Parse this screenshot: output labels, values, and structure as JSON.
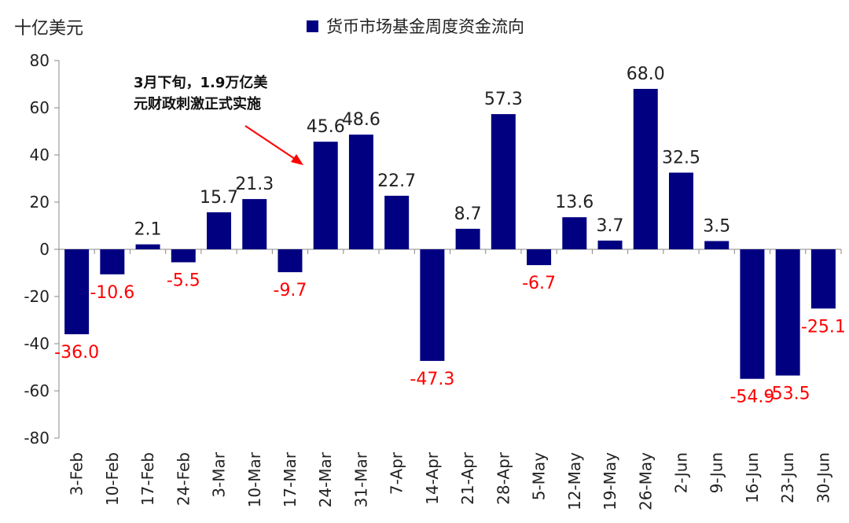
{
  "chart_data": {
    "type": "bar",
    "title": "货币市场基金周度资金流向",
    "ylabel": "十亿美元",
    "xlabel": "",
    "ylim": [
      -80,
      80
    ],
    "yticks": [
      80,
      60,
      40,
      20,
      0,
      -20,
      -40,
      -60,
      -80
    ],
    "grid": false,
    "legend": "top-center",
    "categories": [
      "3-Feb",
      "10-Feb",
      "17-Feb",
      "24-Feb",
      "3-Mar",
      "10-Mar",
      "17-Mar",
      "24-Mar",
      "31-Mar",
      "7-Apr",
      "14-Apr",
      "21-Apr",
      "28-Apr",
      "5-May",
      "12-May",
      "19-May",
      "26-May",
      "2-Jun",
      "9-Jun",
      "16-Jun",
      "23-Jun",
      "30-Jun"
    ],
    "series": [
      {
        "name": "货币市场基金周度资金流向",
        "values": [
          -36.0,
          -10.6,
          2.1,
          -5.5,
          15.7,
          21.3,
          -9.7,
          45.6,
          48.6,
          22.7,
          -47.3,
          8.7,
          57.3,
          -6.7,
          13.6,
          3.7,
          68.0,
          32.5,
          3.5,
          -54.9,
          -53.5,
          -25.1
        ],
        "labels": [
          "-36.0",
          "-10.6",
          "2.1",
          "-5.5",
          "15.7",
          "21.3",
          "-9.7",
          "45.6",
          "48.6",
          "22.7",
          "-47.3",
          "8.7",
          "57.3",
          "-6.7",
          "13.6",
          "3.7",
          "68.0",
          "32.5",
          "3.5",
          "-54.9",
          "-53.5",
          "-25.1"
        ]
      }
    ],
    "colors": {
      "bar": "#000080",
      "positive_label": "#222222",
      "negative_label": "#ff0000",
      "arrow": "#ff0000"
    },
    "annotation": {
      "line1": "3月下旬，1.9万亿美",
      "line2": "元财政刺激正式实施"
    }
  }
}
